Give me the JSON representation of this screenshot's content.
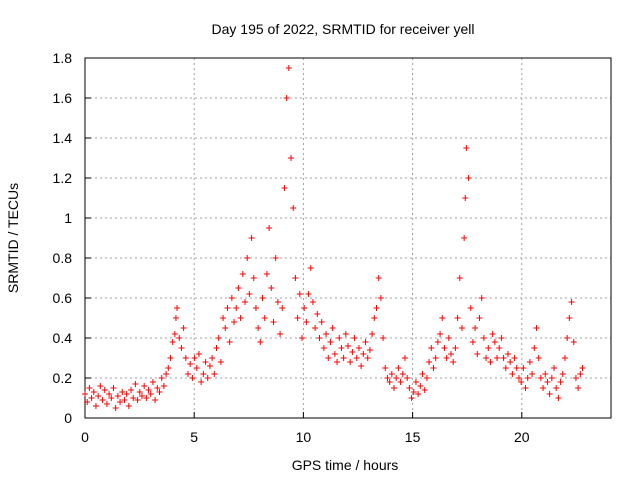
{
  "chart_data": {
    "type": "scatter",
    "title": "Day 195 of 2022, SRMTID for receiver yell",
    "xlabel": "GPS time / hours",
    "ylabel": "SRMTID / TECUs",
    "xlim": [
      0,
      24
    ],
    "ylim": [
      0,
      1.8
    ],
    "xticks": [
      0,
      5,
      10,
      15,
      20
    ],
    "yticks": [
      0,
      0.2,
      0.4,
      0.6,
      0.8,
      1,
      1.2,
      1.4,
      1.6,
      1.8
    ],
    "xtick_labels": [
      "0",
      "5",
      "10",
      "15",
      "20"
    ],
    "ytick_labels": [
      "0",
      "0.2",
      "0.4",
      "0.6",
      "0.8",
      "1",
      "1.2",
      "1.4",
      "1.6",
      "1.8"
    ],
    "grid": true,
    "marker": "plus",
    "color": "#ff0000",
    "series": [
      {
        "name": "SRMTID",
        "points": [
          [
            0.0,
            0.12
          ],
          [
            0.1,
            0.08
          ],
          [
            0.2,
            0.15
          ],
          [
            0.3,
            0.1
          ],
          [
            0.4,
            0.13
          ],
          [
            0.5,
            0.06
          ],
          [
            0.6,
            0.11
          ],
          [
            0.7,
            0.16
          ],
          [
            0.8,
            0.09
          ],
          [
            0.9,
            0.14
          ],
          [
            1.0,
            0.07
          ],
          [
            1.1,
            0.12
          ],
          [
            1.2,
            0.1
          ],
          [
            1.3,
            0.15
          ],
          [
            1.4,
            0.05
          ],
          [
            1.5,
            0.11
          ],
          [
            1.6,
            0.08
          ],
          [
            1.7,
            0.13
          ],
          [
            1.8,
            0.09
          ],
          [
            1.9,
            0.12
          ],
          [
            2.0,
            0.06
          ],
          [
            2.1,
            0.14
          ],
          [
            2.2,
            0.1
          ],
          [
            2.3,
            0.17
          ],
          [
            2.4,
            0.09
          ],
          [
            2.5,
            0.13
          ],
          [
            2.6,
            0.11
          ],
          [
            2.7,
            0.16
          ],
          [
            2.8,
            0.1
          ],
          [
            2.9,
            0.14
          ],
          [
            3.0,
            0.12
          ],
          [
            3.1,
            0.18
          ],
          [
            3.2,
            0.09
          ],
          [
            3.3,
            0.15
          ],
          [
            3.4,
            0.13
          ],
          [
            3.5,
            0.2
          ],
          [
            3.6,
            0.16
          ],
          [
            3.7,
            0.22
          ],
          [
            3.8,
            0.25
          ],
          [
            3.9,
            0.3
          ],
          [
            4.0,
            0.38
          ],
          [
            4.1,
            0.42
          ],
          [
            4.15,
            0.5
          ],
          [
            4.2,
            0.55
          ],
          [
            4.3,
            0.4
          ],
          [
            4.4,
            0.35
          ],
          [
            4.5,
            0.45
          ],
          [
            4.6,
            0.3
          ],
          [
            4.7,
            0.22
          ],
          [
            4.8,
            0.27
          ],
          [
            4.9,
            0.2
          ],
          [
            5.0,
            0.3
          ],
          [
            5.1,
            0.25
          ],
          [
            5.2,
            0.32
          ],
          [
            5.3,
            0.18
          ],
          [
            5.4,
            0.22
          ],
          [
            5.5,
            0.28
          ],
          [
            5.6,
            0.2
          ],
          [
            5.7,
            0.26
          ],
          [
            5.8,
            0.3
          ],
          [
            5.9,
            0.22
          ],
          [
            6.0,
            0.35
          ],
          [
            6.1,
            0.4
          ],
          [
            6.2,
            0.28
          ],
          [
            6.3,
            0.5
          ],
          [
            6.4,
            0.45
          ],
          [
            6.5,
            0.55
          ],
          [
            6.6,
            0.38
          ],
          [
            6.7,
            0.6
          ],
          [
            6.8,
            0.48
          ],
          [
            6.9,
            0.55
          ],
          [
            7.0,
            0.65
          ],
          [
            7.1,
            0.5
          ],
          [
            7.2,
            0.72
          ],
          [
            7.3,
            0.58
          ],
          [
            7.4,
            0.8
          ],
          [
            7.5,
            0.62
          ],
          [
            7.6,
            0.9
          ],
          [
            7.7,
            0.7
          ],
          [
            7.8,
            0.55
          ],
          [
            7.9,
            0.45
          ],
          [
            8.0,
            0.38
          ],
          [
            8.1,
            0.6
          ],
          [
            8.2,
            0.5
          ],
          [
            8.3,
            0.72
          ],
          [
            8.4,
            0.95
          ],
          [
            8.5,
            0.65
          ],
          [
            8.6,
            0.48
          ],
          [
            8.7,
            0.8
          ],
          [
            8.8,
            0.58
          ],
          [
            8.9,
            0.42
          ],
          [
            9.0,
            0.55
          ],
          [
            9.1,
            1.15
          ],
          [
            9.2,
            1.6
          ],
          [
            9.3,
            1.75
          ],
          [
            9.4,
            1.3
          ],
          [
            9.5,
            1.05
          ],
          [
            9.6,
            0.7
          ],
          [
            9.7,
            0.5
          ],
          [
            9.8,
            0.62
          ],
          [
            9.9,
            0.4
          ],
          [
            10.0,
            0.55
          ],
          [
            10.1,
            0.48
          ],
          [
            10.2,
            0.62
          ],
          [
            10.3,
            0.75
          ],
          [
            10.4,
            0.58
          ],
          [
            10.5,
            0.45
          ],
          [
            10.6,
            0.52
          ],
          [
            10.7,
            0.4
          ],
          [
            10.8,
            0.48
          ],
          [
            10.9,
            0.35
          ],
          [
            11.0,
            0.42
          ],
          [
            11.1,
            0.3
          ],
          [
            11.2,
            0.38
          ],
          [
            11.3,
            0.45
          ],
          [
            11.4,
            0.32
          ],
          [
            11.5,
            0.28
          ],
          [
            11.6,
            0.4
          ],
          [
            11.7,
            0.35
          ],
          [
            11.8,
            0.3
          ],
          [
            11.9,
            0.42
          ],
          [
            12.0,
            0.36
          ],
          [
            12.1,
            0.28
          ],
          [
            12.2,
            0.33
          ],
          [
            12.3,
            0.4
          ],
          [
            12.4,
            0.3
          ],
          [
            12.5,
            0.35
          ],
          [
            12.6,
            0.26
          ],
          [
            12.7,
            0.32
          ],
          [
            12.8,
            0.38
          ],
          [
            12.9,
            0.3
          ],
          [
            13.0,
            0.34
          ],
          [
            13.1,
            0.42
          ],
          [
            13.2,
            0.5
          ],
          [
            13.3,
            0.55
          ],
          [
            13.4,
            0.7
          ],
          [
            13.5,
            0.6
          ],
          [
            13.6,
            0.4
          ],
          [
            13.7,
            0.25
          ],
          [
            13.8,
            0.2
          ],
          [
            13.9,
            0.18
          ],
          [
            14.0,
            0.22
          ],
          [
            14.1,
            0.15
          ],
          [
            14.2,
            0.2
          ],
          [
            14.3,
            0.25
          ],
          [
            14.4,
            0.18
          ],
          [
            14.5,
            0.22
          ],
          [
            14.6,
            0.3
          ],
          [
            14.7,
            0.2
          ],
          [
            14.8,
            0.15
          ],
          [
            14.9,
            0.1
          ],
          [
            15.0,
            0.13
          ],
          [
            15.1,
            0.18
          ],
          [
            15.2,
            0.12
          ],
          [
            15.3,
            0.16
          ],
          [
            15.4,
            0.22
          ],
          [
            15.5,
            0.14
          ],
          [
            15.6,
            0.2
          ],
          [
            15.7,
            0.28
          ],
          [
            15.8,
            0.35
          ],
          [
            15.9,
            0.25
          ],
          [
            16.0,
            0.3
          ],
          [
            16.1,
            0.38
          ],
          [
            16.2,
            0.42
          ],
          [
            16.3,
            0.5
          ],
          [
            16.4,
            0.35
          ],
          [
            16.5,
            0.3
          ],
          [
            16.6,
            0.4
          ],
          [
            16.7,
            0.32
          ],
          [
            16.8,
            0.28
          ],
          [
            16.9,
            0.35
          ],
          [
            17.0,
            0.5
          ],
          [
            17.1,
            0.7
          ],
          [
            17.2,
            0.45
          ],
          [
            17.3,
            0.9
          ],
          [
            17.35,
            1.1
          ],
          [
            17.4,
            1.35
          ],
          [
            17.5,
            1.2
          ],
          [
            17.6,
            0.55
          ],
          [
            17.7,
            0.38
          ],
          [
            17.8,
            0.45
          ],
          [
            17.9,
            0.32
          ],
          [
            18.0,
            0.5
          ],
          [
            18.1,
            0.6
          ],
          [
            18.2,
            0.4
          ],
          [
            18.3,
            0.3
          ],
          [
            18.4,
            0.35
          ],
          [
            18.5,
            0.28
          ],
          [
            18.6,
            0.42
          ],
          [
            18.7,
            0.38
          ],
          [
            18.8,
            0.3
          ],
          [
            18.9,
            0.35
          ],
          [
            19.0,
            0.4
          ],
          [
            19.1,
            0.3
          ],
          [
            19.2,
            0.25
          ],
          [
            19.3,
            0.32
          ],
          [
            19.4,
            0.28
          ],
          [
            19.5,
            0.22
          ],
          [
            19.6,
            0.3
          ],
          [
            19.7,
            0.25
          ],
          [
            19.8,
            0.2
          ],
          [
            19.9,
            0.18
          ],
          [
            20.0,
            0.25
          ],
          [
            20.1,
            0.15
          ],
          [
            20.2,
            0.2
          ],
          [
            20.3,
            0.28
          ],
          [
            20.4,
            0.22
          ],
          [
            20.5,
            0.35
          ],
          [
            20.6,
            0.45
          ],
          [
            20.7,
            0.3
          ],
          [
            20.8,
            0.2
          ],
          [
            20.9,
            0.15
          ],
          [
            21.0,
            0.22
          ],
          [
            21.1,
            0.18
          ],
          [
            21.2,
            0.12
          ],
          [
            21.3,
            0.2
          ],
          [
            21.4,
            0.25
          ],
          [
            21.5,
            0.15
          ],
          [
            21.6,
            0.1
          ],
          [
            21.7,
            0.18
          ],
          [
            21.8,
            0.22
          ],
          [
            21.9,
            0.3
          ],
          [
            22.0,
            0.4
          ],
          [
            22.1,
            0.5
          ],
          [
            22.2,
            0.58
          ],
          [
            22.3,
            0.38
          ],
          [
            22.4,
            0.2
          ],
          [
            22.5,
            0.15
          ],
          [
            22.6,
            0.22
          ],
          [
            22.7,
            0.25
          ]
        ]
      }
    ]
  }
}
